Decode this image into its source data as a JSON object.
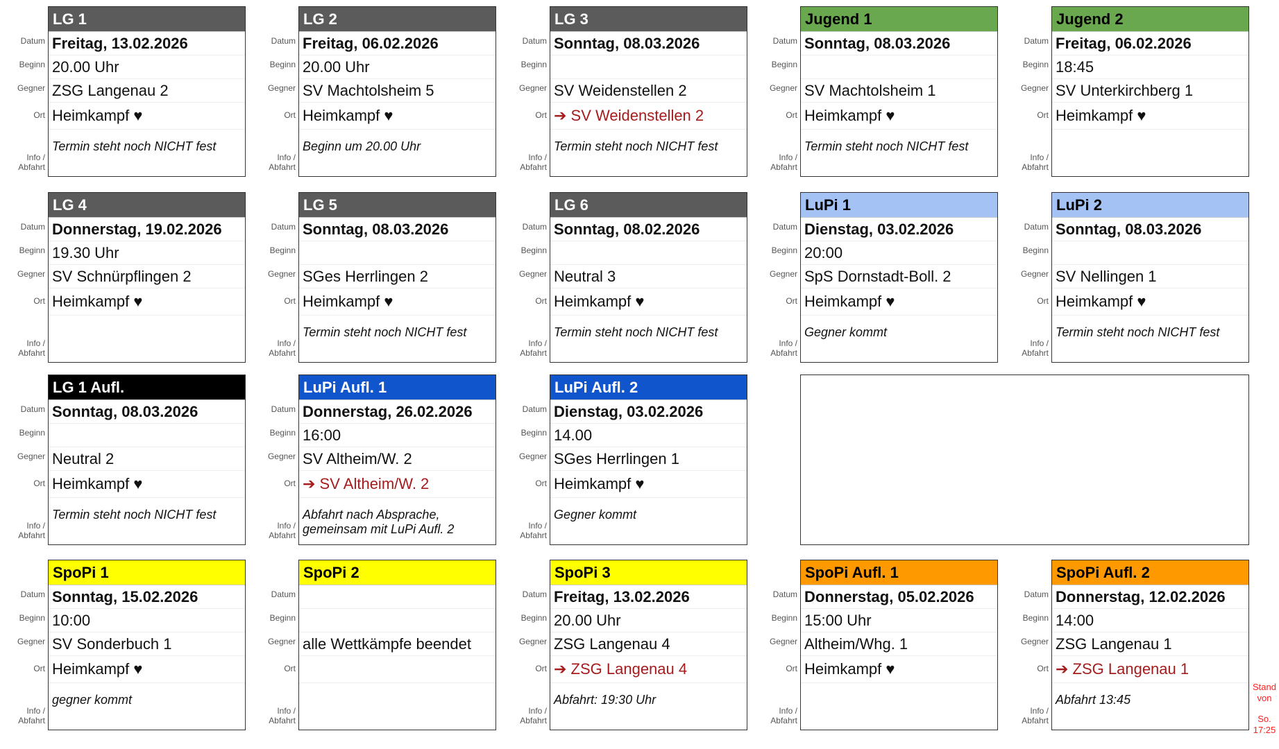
{
  "labels": {
    "datum": "Datum",
    "beginn": "Beginn",
    "gegner": "Gegner",
    "ort": "Ort",
    "info1": "Info /",
    "info2": "Abfahrt"
  },
  "cards": [
    {
      "title": "LG 1",
      "bg": "#5b5b5b",
      "fg": "#ffffff",
      "date": "Freitag, 13.02.2026",
      "time": "20.00 Uhr",
      "opponent": "ZSG Langenau 2",
      "location": "Heimkampf ♥",
      "away": false,
      "info": "Termin steht noch NICHT fest"
    },
    {
      "title": "LG 2",
      "bg": "#5b5b5b",
      "fg": "#ffffff",
      "date": "Freitag, 06.02.2026",
      "time": "20.00 Uhr",
      "opponent": "SV Machtolsheim 5",
      "location": "Heimkampf ♥",
      "away": false,
      "info": "Beginn um 20.00 Uhr"
    },
    {
      "title": "LG 3",
      "bg": "#5b5b5b",
      "fg": "#ffffff",
      "date": "Sonntag, 08.03.2026",
      "time": "",
      "opponent": "SV Weidenstellen 2",
      "location": "➔ SV Weidenstellen 2",
      "away": true,
      "info": "Termin steht noch NICHT fest"
    },
    {
      "title": "Jugend 1",
      "bg": "#6aa84f",
      "fg": "#000000",
      "date": "Sonntag, 08.03.2026",
      "time": "",
      "opponent": "SV Machtolsheim 1",
      "location": "Heimkampf ♥",
      "away": false,
      "info": "Termin steht noch NICHT fest"
    },
    {
      "title": "Jugend 2",
      "bg": "#6aa84f",
      "fg": "#000000",
      "date": "Freitag, 06.02.2026",
      "time": "18:45",
      "opponent": "SV Unterkirchberg 1",
      "location": "Heimkampf ♥",
      "away": false,
      "info": ""
    },
    {
      "title": "LG 4",
      "bg": "#5b5b5b",
      "fg": "#ffffff",
      "date": "Donnerstag, 19.02.2026",
      "time": "19.30 Uhr",
      "opponent": "SV Schnürpflingen 2",
      "location": "Heimkampf ♥",
      "away": false,
      "info": ""
    },
    {
      "title": "LG 5",
      "bg": "#5b5b5b",
      "fg": "#ffffff",
      "date": "Sonntag, 08.03.2026",
      "time": "",
      "opponent": "SGes Herrlingen 2",
      "location": "Heimkampf ♥",
      "away": false,
      "info": "Termin steht noch NICHT fest"
    },
    {
      "title": "LG 6",
      "bg": "#5b5b5b",
      "fg": "#ffffff",
      "date": "Sonntag, 08.02.2026",
      "time": "",
      "opponent": "Neutral 3",
      "location": "Heimkampf ♥",
      "away": false,
      "info": "Termin steht noch NICHT fest"
    },
    {
      "title": "LuPi 1",
      "bg": "#a4c2f4",
      "fg": "#000000",
      "date": "Dienstag, 03.02.2026",
      "time": "20:00",
      "opponent": "SpS Dornstadt-Boll. 2",
      "location": "Heimkampf ♥",
      "away": false,
      "info": "Gegner kommt"
    },
    {
      "title": "LuPi 2",
      "bg": "#a4c2f4",
      "fg": "#000000",
      "date": "Sonntag, 08.03.2026",
      "time": "",
      "opponent": "SV Nellingen 1",
      "location": "Heimkampf ♥",
      "away": false,
      "info": "Termin steht noch NICHT fest"
    },
    {
      "title": "LG 1 Aufl.",
      "bg": "#000000",
      "fg": "#ffffff",
      "date": "Sonntag, 08.03.2026",
      "time": "",
      "opponent": "Neutral 2",
      "location": "Heimkampf ♥",
      "away": false,
      "info": "Termin steht noch NICHT fest"
    },
    {
      "title": "LuPi Aufl. 1",
      "bg": "#1155cc",
      "fg": "#ffffff",
      "date": "Donnerstag, 26.02.2026",
      "time": "16:00",
      "opponent": "SV Altheim/W. 2",
      "location": "➔ SV Altheim/W. 2",
      "away": true,
      "info": "Abfahrt nach Absprache, gemeinsam mit LuPi Aufl. 2"
    },
    {
      "title": "LuPi Aufl. 2",
      "bg": "#1155cc",
      "fg": "#ffffff",
      "date": "Dienstag, 03.02.2026",
      "time": "14.00",
      "opponent": "SGes Herrlingen 1",
      "location": "Heimkampf ♥",
      "away": false,
      "info": "Gegner kommt"
    },
    {
      "title": "SpoPi 1",
      "bg": "#ffff00",
      "fg": "#000000",
      "date": "Sonntag, 15.02.2026",
      "time": "10:00",
      "opponent": "SV Sonderbuch 1",
      "location": "Heimkampf ♥",
      "away": false,
      "info": "gegner kommt"
    },
    {
      "title": "SpoPi 2",
      "bg": "#ffff00",
      "fg": "#000000",
      "date": "",
      "time": "",
      "opponent": "alle Wettkämpfe beendet",
      "location": "",
      "away": false,
      "info": ""
    },
    {
      "title": "SpoPi 3",
      "bg": "#ffff00",
      "fg": "#000000",
      "date": "Freitag, 13.02.2026",
      "time": "20.00 Uhr",
      "opponent": "ZSG Langenau 4",
      "location": "➔ ZSG Langenau 4",
      "away": true,
      "info": "Abfahrt: 19:30 Uhr"
    },
    {
      "title": "SpoPi Aufl. 1",
      "bg": "#ff9900",
      "fg": "#000000",
      "date": "Donnerstag, 05.02.2026",
      "time": "15:00 Uhr",
      "opponent": "Altheim/Whg. 1",
      "location": "Heimkampf ♥",
      "away": false,
      "info": ""
    },
    {
      "title": "SpoPi Aufl. 2",
      "bg": "#ff9900",
      "fg": "#000000",
      "date": "Donnerstag, 12.02.2026",
      "time": "14:00",
      "opponent": "ZSG Langenau 1",
      "location": "➔ ZSG Langenau 1",
      "away": true,
      "info": "Abfahrt 13:45"
    }
  ],
  "stand": {
    "line1": "Stand",
    "line2": "von",
    "line3": "So.",
    "line4": "17:25"
  }
}
